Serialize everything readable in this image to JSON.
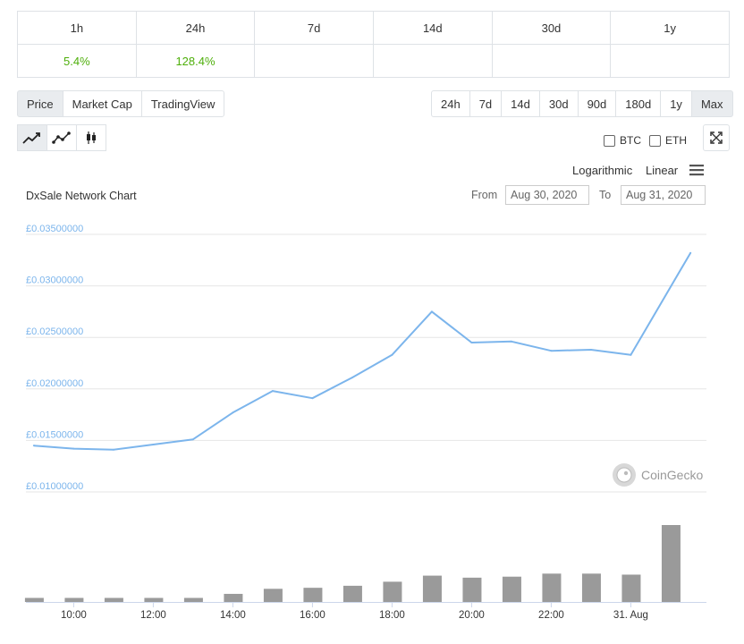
{
  "change_table": {
    "headers": [
      "1h",
      "24h",
      "7d",
      "14d",
      "30d",
      "1y"
    ],
    "values": [
      "5.4%",
      "128.4%",
      "",
      "",
      "",
      ""
    ]
  },
  "type_tabs": [
    {
      "label": "Price",
      "active": true
    },
    {
      "label": "Market Cap",
      "active": false
    },
    {
      "label": "TradingView",
      "active": false
    }
  ],
  "range_tabs": [
    {
      "label": "24h",
      "active": false
    },
    {
      "label": "7d",
      "active": false
    },
    {
      "label": "14d",
      "active": false
    },
    {
      "label": "30d",
      "active": false
    },
    {
      "label": "90d",
      "active": false
    },
    {
      "label": "180d",
      "active": false
    },
    {
      "label": "1y",
      "active": false
    },
    {
      "label": "Max",
      "active": true
    }
  ],
  "chart_tools": [
    {
      "icon": "line-chart-icon",
      "active": true
    },
    {
      "icon": "line-markers-icon",
      "active": false
    },
    {
      "icon": "candlestick-icon",
      "active": false
    }
  ],
  "compare": {
    "btc": "BTC",
    "eth": "ETH"
  },
  "scale": {
    "logarithmic": "Logarithmic",
    "linear": "Linear"
  },
  "chart_header": {
    "title": "DxSale Network Chart",
    "from_label": "From",
    "from_value": "Aug 30, 2020",
    "to_label": "To",
    "to_value": "Aug 31, 2020"
  },
  "credit": "CoinGecko",
  "colors": {
    "line": "#7cb5ec",
    "volume": "#9a9a9a",
    "positive": "#4eaf0a"
  },
  "chart_data": {
    "type": "line",
    "y_tick_labels": [
      "£0.01000000",
      "£0.01500000",
      "£0.02000000",
      "£0.02500000",
      "£0.03000000",
      "£0.03500000"
    ],
    "y_ticks": [
      0.01,
      0.015,
      0.02,
      0.025,
      0.03,
      0.035
    ],
    "ylim": [
      0.01,
      0.035
    ],
    "x_tick_labels": [
      "10:00",
      "12:00",
      "14:00",
      "16:00",
      "18:00",
      "20:00",
      "22:00",
      "31. Aug"
    ],
    "x_ticks": [
      10,
      12,
      14,
      16,
      18,
      20,
      22,
      24
    ],
    "xlim": [
      8.8,
      25.9
    ],
    "series": [
      {
        "x": [
          9,
          10,
          11,
          12,
          13,
          14,
          15,
          16,
          17,
          18,
          19,
          20,
          21,
          22,
          23,
          24,
          25.5
        ],
        "values": [
          0.0145,
          0.0142,
          0.0141,
          0.0146,
          0.0151,
          0.0177,
          0.0198,
          0.0191,
          0.0211,
          0.0233,
          0.0275,
          0.0245,
          0.0246,
          0.0237,
          0.0238,
          0.0233,
          0.0332
        ]
      }
    ],
    "volume": {
      "x": [
        9,
        10,
        11,
        12,
        13,
        14,
        15,
        16,
        17,
        18,
        19,
        20,
        21,
        22,
        23,
        24,
        25
      ],
      "values": [
        4,
        4,
        4,
        4,
        4,
        8,
        13,
        14,
        16,
        20,
        26,
        24,
        25,
        28,
        28,
        27,
        76
      ]
    }
  }
}
